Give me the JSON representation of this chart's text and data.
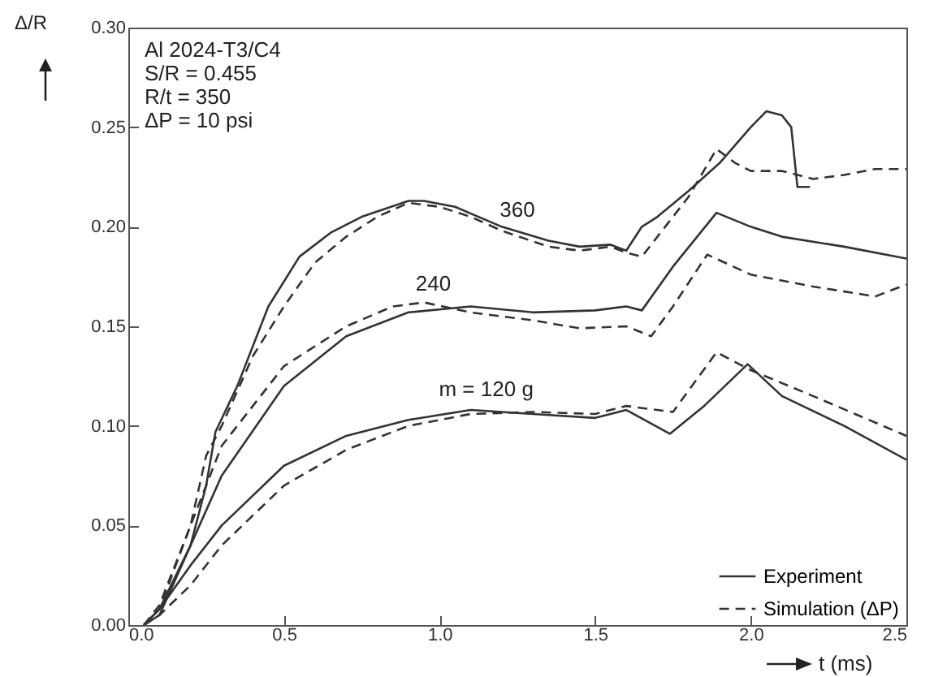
{
  "chart_data": {
    "type": "line",
    "xlabel": "t (ms)",
    "ylabel": "Δ/R",
    "xlim": [
      0,
      2.5
    ],
    "xticks": [
      {
        "value": 0,
        "label": "0.0"
      },
      {
        "value": 0.5,
        "label": "0.5"
      },
      {
        "value": 1,
        "label": "1.0"
      },
      {
        "value": 1.5,
        "label": "1.5"
      },
      {
        "value": 2,
        "label": "2.0"
      },
      {
        "value": 2.5,
        "label": "2.5"
      }
    ],
    "ylim": [
      0,
      0.3
    ],
    "yticks": [
      {
        "value": 0,
        "label": "0.00"
      },
      {
        "value": 0.05,
        "label": "0.05"
      },
      {
        "value": 0.1,
        "label": "0.10"
      },
      {
        "value": 0.15,
        "label": "0.15"
      },
      {
        "value": 0.2,
        "label": "0.20"
      },
      {
        "value": 0.25,
        "label": "0.25"
      },
      {
        "value": 0.3,
        "label": "0.30"
      }
    ],
    "grid": false,
    "legend": "bottom right",
    "annotations": [
      "Al 2024-T3/C4",
      "S/R = 0.455",
      "R/t = 350",
      "ΔP = 10 psi",
      {
        "text": "360",
        "x": 1.25,
        "y": 0.2
      },
      {
        "text": "240",
        "x": 0.98,
        "y": 0.163
      },
      {
        "text": "m = 120 g",
        "x": 1.15,
        "y": 0.11
      }
    ],
    "series": [
      {
        "name": "Experiment",
        "color": "#333333",
        "line_style": "solid",
        "x": [
          0.05,
          0.1,
          0.2,
          0.25,
          0.28,
          0.35,
          0.45,
          0.55,
          0.65,
          0.75,
          0.9,
          0.95,
          1.05,
          1.2,
          1.35,
          1.45,
          1.55,
          1.6,
          1.65,
          1.7,
          1.8,
          1.9,
          2.0,
          2.05,
          2.1,
          2.13,
          2.15,
          2.19
        ],
        "values": [
          0,
          0.005,
          0.04,
          0.07,
          0.097,
          0.12,
          0.16,
          0.185,
          0.197,
          0.205,
          0.213,
          0.213,
          0.21,
          0.2,
          0.193,
          0.19,
          0.191,
          0.188,
          0.2,
          0.205,
          0.218,
          0.232,
          0.25,
          0.258,
          0.256,
          0.25,
          0.22,
          0.22
        ]
      },
      {
        "name": "Simulation (ΔP)",
        "color": "#333333",
        "line_style": "dashed",
        "x": [
          0.05,
          0.1,
          0.2,
          0.25,
          0.3,
          0.4,
          0.5,
          0.6,
          0.7,
          0.8,
          0.9,
          1.0,
          1.1,
          1.2,
          1.35,
          1.45,
          1.55,
          1.6,
          1.65,
          1.7,
          1.8,
          1.89,
          1.95,
          2.0,
          2.1,
          2.2,
          2.3,
          2.4,
          2.5
        ],
        "values": [
          0,
          0.008,
          0.05,
          0.085,
          0.1,
          0.135,
          0.16,
          0.182,
          0.195,
          0.205,
          0.212,
          0.21,
          0.205,
          0.198,
          0.19,
          0.188,
          0.19,
          0.187,
          0.185,
          0.195,
          0.215,
          0.239,
          0.232,
          0.228,
          0.228,
          0.224,
          0.226,
          0.229,
          0.229
        ]
      },
      {
        "color": "#333333",
        "line_style": "solid",
        "x": [
          0.05,
          0.1,
          0.2,
          0.3,
          0.5,
          0.7,
          0.9,
          1.1,
          1.3,
          1.5,
          1.6,
          1.65,
          1.75,
          1.89,
          2.0,
          2.1,
          2.3,
          2.5
        ],
        "values": [
          0,
          0.008,
          0.04,
          0.075,
          0.12,
          0.145,
          0.157,
          0.16,
          0.157,
          0.158,
          0.16,
          0.158,
          0.18,
          0.207,
          0.2,
          0.195,
          0.19,
          0.184
        ]
      },
      {
        "color": "#333333",
        "line_style": "dashed",
        "x": [
          0.05,
          0.1,
          0.2,
          0.3,
          0.5,
          0.7,
          0.85,
          0.95,
          1.1,
          1.3,
          1.45,
          1.6,
          1.68,
          1.75,
          1.86,
          2.0,
          2.2,
          2.4,
          2.5
        ],
        "values": [
          0,
          0.01,
          0.05,
          0.09,
          0.13,
          0.15,
          0.16,
          0.162,
          0.157,
          0.153,
          0.149,
          0.15,
          0.145,
          0.16,
          0.186,
          0.176,
          0.17,
          0.165,
          0.171
        ]
      },
      {
        "color": "#333333",
        "line_style": "solid",
        "x": [
          0.05,
          0.1,
          0.2,
          0.3,
          0.5,
          0.7,
          0.9,
          1.1,
          1.3,
          1.5,
          1.6,
          1.74,
          1.85,
          1.99,
          2.1,
          2.3,
          2.5
        ],
        "values": [
          0,
          0.008,
          0.03,
          0.05,
          0.08,
          0.095,
          0.103,
          0.108,
          0.106,
          0.104,
          0.108,
          0.096,
          0.11,
          0.131,
          0.115,
          0.1,
          0.083
        ]
      },
      {
        "color": "#333333",
        "line_style": "dashed",
        "x": [
          0.05,
          0.1,
          0.2,
          0.3,
          0.5,
          0.7,
          0.9,
          1.1,
          1.3,
          1.5,
          1.6,
          1.75,
          1.89,
          2.0,
          2.2,
          2.5
        ],
        "values": [
          0,
          0.005,
          0.02,
          0.04,
          0.07,
          0.088,
          0.1,
          0.106,
          0.107,
          0.106,
          0.11,
          0.107,
          0.137,
          0.128,
          0.115,
          0.095
        ]
      }
    ]
  }
}
